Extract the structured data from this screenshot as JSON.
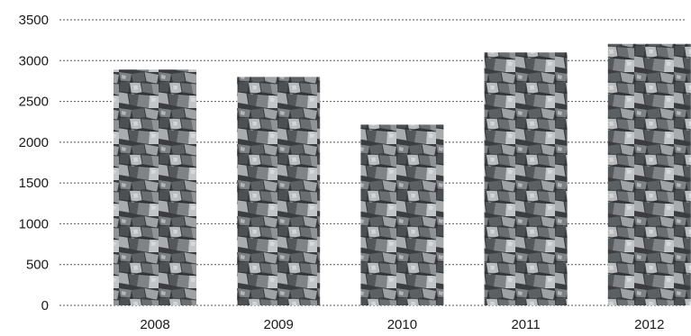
{
  "chart_data": {
    "type": "bar",
    "categories": [
      "2008",
      "2009",
      "2010",
      "2011",
      "2012"
    ],
    "values": [
      2890,
      2800,
      2215,
      3100,
      3205
    ],
    "title": "",
    "xlabel": "",
    "ylabel": "",
    "ylim": [
      0,
      3500
    ],
    "yticks": [
      "0",
      "500",
      "1000",
      "1500",
      "2000",
      "2500",
      "3000",
      "3500"
    ],
    "grid": true,
    "grid_style": "dotted",
    "bar_texture": "coal-stones",
    "colors": {
      "grid": "#555555",
      "text": "#1a1a1a",
      "stone_dark": "#2b2d2f",
      "stone_light": "#c9cbcd"
    }
  }
}
